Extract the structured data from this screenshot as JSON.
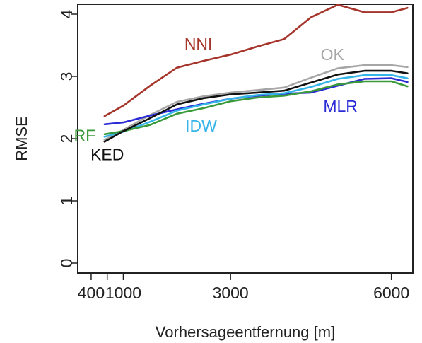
{
  "chart_data": {
    "type": "line",
    "xlabel": "Vorhersageentfernung [m]",
    "ylabel": "RMSE",
    "xlim": [
      150,
      6400
    ],
    "ylim": [
      0,
      4.2
    ],
    "x_ticks": [
      400,
      1000,
      3000,
      6000
    ],
    "x_tick_labels": [
      "400",
      "1000",
      "3000",
      "6000"
    ],
    "x_minor_ticks": [
      700
    ],
    "y_ticks": [
      0,
      1,
      2,
      3,
      4
    ],
    "y_tick_labels": [
      "0",
      "1",
      "2",
      "3",
      "4"
    ],
    "grid": false,
    "series": [
      {
        "name": "NNI",
        "color": "#a5342a",
        "x": [
          650,
          1000,
          1500,
          2000,
          2500,
          3000,
          3500,
          4000,
          4500,
          5000,
          5500,
          6000,
          6300
        ],
        "y": [
          2.36,
          2.53,
          2.85,
          3.14,
          3.25,
          3.35,
          3.48,
          3.6,
          3.95,
          4.15,
          4.03,
          4.03,
          4.1
        ]
      },
      {
        "name": "OK",
        "color": "#a6a6a6",
        "x": [
          650,
          1000,
          1500,
          2000,
          2500,
          3000,
          3500,
          4000,
          4500,
          5000,
          5500,
          6000,
          6300
        ],
        "y": [
          1.98,
          2.14,
          2.38,
          2.59,
          2.68,
          2.74,
          2.78,
          2.82,
          2.98,
          3.13,
          3.18,
          3.18,
          3.15
        ]
      },
      {
        "name": "MLR",
        "color": "#2b2bd6",
        "x": [
          650,
          1000,
          1500,
          2000,
          2500,
          3000,
          3500,
          4000,
          4500,
          5000,
          5500,
          6000,
          6300
        ],
        "y": [
          2.23,
          2.26,
          2.37,
          2.47,
          2.56,
          2.64,
          2.69,
          2.72,
          2.74,
          2.85,
          2.96,
          2.97,
          2.91
        ]
      },
      {
        "name": "IDW",
        "color": "#35b4e8",
        "x": [
          650,
          1000,
          1500,
          2000,
          2500,
          3000,
          3500,
          4000,
          4500,
          5000,
          5500,
          6000,
          6300
        ],
        "y": [
          2.03,
          2.11,
          2.27,
          2.45,
          2.55,
          2.64,
          2.7,
          2.73,
          2.83,
          2.96,
          3.02,
          3.02,
          2.97
        ]
      },
      {
        "name": "RF",
        "color": "#3a9a3a",
        "x": [
          650,
          1000,
          1500,
          2000,
          2500,
          3000,
          3500,
          4000,
          4500,
          5000,
          5500,
          6000,
          6300
        ],
        "y": [
          2.07,
          2.12,
          2.22,
          2.4,
          2.49,
          2.6,
          2.66,
          2.69,
          2.76,
          2.87,
          2.92,
          2.92,
          2.84
        ]
      },
      {
        "name": "KED",
        "color": "#111111",
        "x": [
          650,
          1000,
          1500,
          2000,
          2500,
          3000,
          3500,
          4000,
          4500,
          5000,
          5500,
          6000,
          6300
        ],
        "y": [
          1.95,
          2.12,
          2.33,
          2.55,
          2.65,
          2.71,
          2.74,
          2.77,
          2.9,
          3.03,
          3.09,
          3.09,
          3.05
        ]
      }
    ],
    "annotations": [
      {
        "text": "NNI",
        "color": "#a5342a",
        "x": 2400,
        "y": 3.5
      },
      {
        "text": "OK",
        "color": "#a6a6a6",
        "x": 4900,
        "y": 3.33
      },
      {
        "text": "MLR",
        "color": "#2b2bd6",
        "x": 5050,
        "y": 2.5
      },
      {
        "text": "IDW",
        "color": "#35b4e8",
        "x": 2450,
        "y": 2.18
      },
      {
        "text": "RF",
        "color": "#3a9a3a",
        "x": 280,
        "y": 2.03
      },
      {
        "text": "KED",
        "color": "#111111",
        "x": 700,
        "y": 1.72
      }
    ]
  }
}
